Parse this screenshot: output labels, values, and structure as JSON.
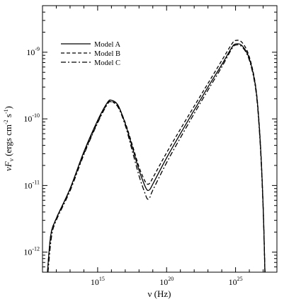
{
  "chart_data": {
    "type": "line",
    "title": "",
    "xlabel": "ν (Hz)",
    "ylabel": "νF",
    "ylabel_sub": "ν",
    "ylabel_units": " (ergs cm",
    "ylabel_units_exp1": "-2",
    "ylabel_units_mid": " s",
    "ylabel_units_exp2": "-1",
    "ylabel_units_end": ")",
    "xscale": "log",
    "yscale": "log",
    "xlim": [
      100000000000.0,
      1e+28
    ],
    "ylim": [
      5e-13,
      5e-09
    ],
    "grid": false,
    "legend_position": "top-left",
    "x_ticks": [
      {
        "value": 1000000000000000.0,
        "base": "10",
        "exp": "15"
      },
      {
        "value": 1e+20,
        "base": "10",
        "exp": "20"
      },
      {
        "value": 1e+25,
        "base": "10",
        "exp": "25"
      }
    ],
    "y_ticks": [
      {
        "value": 1e-12,
        "base": "10",
        "exp": "-12"
      },
      {
        "value": 1e-11,
        "base": "10",
        "exp": "-11"
      },
      {
        "value": 1e-10,
        "base": "10",
        "exp": "-10"
      },
      {
        "value": 1e-09,
        "base": "10",
        "exp": "-9"
      }
    ],
    "series": [
      {
        "name": "Model A",
        "line_style": "solid",
        "points": [
          [
            230000000000.0,
            5e-13
          ],
          [
            400000000000.0,
            1.8e-12
          ],
          [
            1000000000000.0,
            3.2e-12
          ],
          [
            10000000000000.0,
            9e-12
          ],
          [
            100000000000000.0,
            3.2e-11
          ],
          [
            1000000000000000.0,
            9.5e-11
          ],
          [
            5000000000000000.0,
            1.75e-10
          ],
          [
            1e+16,
            1.9e-10
          ],
          [
            3e+16,
            1.6e-10
          ],
          [
            1e+17,
            8.5e-11
          ],
          [
            3e+17,
            4e-11
          ],
          [
            1e+18,
            1.7e-11
          ],
          [
            2.5e+18,
            1.02e-11
          ],
          [
            4e+18,
            8.5e-12
          ],
          [
            6e+18,
            8.7e-12
          ],
          [
            1e+19,
            1.05e-11
          ],
          [
            1e+20,
            2.6e-11
          ],
          [
            1e+21,
            6e-11
          ],
          [
            1e+22,
            1.35e-10
          ],
          [
            1e+23,
            3e-10
          ],
          [
            1e+24,
            6.5e-10
          ],
          [
            5e+24,
            1.15e-09
          ],
          [
            1e+25,
            1.33e-09
          ],
          [
            3e+25,
            1.25e-09
          ],
          [
            1e+26,
            8e-10
          ],
          [
            3e+26,
            2.8e-10
          ],
          [
            6e+26,
            5e-11
          ],
          [
            1e+27,
            5e-12
          ],
          [
            1.35e+27,
            5e-13
          ]
        ]
      },
      {
        "name": "Model B",
        "line_style": "dashed",
        "points": [
          [
            230000000000.0,
            5e-13
          ],
          [
            400000000000.0,
            1.8e-12
          ],
          [
            1000000000000.0,
            3.2e-12
          ],
          [
            10000000000000.0,
            8.8e-12
          ],
          [
            100000000000000.0,
            3e-11
          ],
          [
            1000000000000000.0,
            9e-11
          ],
          [
            5000000000000000.0,
            1.68e-10
          ],
          [
            1e+16,
            1.82e-10
          ],
          [
            3e+16,
            1.55e-10
          ],
          [
            1e+17,
            8.8e-11
          ],
          [
            3e+17,
            4.3e-11
          ],
          [
            1e+18,
            1.9e-11
          ],
          [
            2.5e+18,
            1.2e-11
          ],
          [
            4e+18,
            1.05e-11
          ],
          [
            6e+18,
            1.08e-11
          ],
          [
            1e+19,
            1.3e-11
          ],
          [
            1e+20,
            3.1e-11
          ],
          [
            1e+21,
            7e-11
          ],
          [
            1e+22,
            1.55e-10
          ],
          [
            1e+23,
            3.4e-10
          ],
          [
            1e+24,
            7.5e-10
          ],
          [
            5e+24,
            1.3e-09
          ],
          [
            1e+25,
            1.5e-09
          ],
          [
            3e+25,
            1.4e-09
          ],
          [
            1e+26,
            8.5e-10
          ],
          [
            3e+26,
            2.9e-10
          ],
          [
            6e+26,
            5.2e-11
          ],
          [
            1e+27,
            5e-12
          ],
          [
            1.35e+27,
            5e-13
          ]
        ]
      },
      {
        "name": "Model C",
        "line_style": "dashdot",
        "points": [
          [
            250000000000.0,
            5e-13
          ],
          [
            450000000000.0,
            1.7e-12
          ],
          [
            1000000000000.0,
            3e-12
          ],
          [
            10000000000000.0,
            8.3e-12
          ],
          [
            100000000000000.0,
            2.9e-11
          ],
          [
            1000000000000000.0,
            8.7e-11
          ],
          [
            5000000000000000.0,
            1.65e-10
          ],
          [
            1e+16,
            1.8e-10
          ],
          [
            3e+16,
            1.5e-10
          ],
          [
            1e+17,
            8e-11
          ],
          [
            3e+17,
            3.5e-11
          ],
          [
            1e+18,
            1.4e-11
          ],
          [
            2.5e+18,
            8e-12
          ],
          [
            4e+18,
            6.3e-12
          ],
          [
            6e+18,
            6.6e-12
          ],
          [
            1e+19,
            8.5e-12
          ],
          [
            1e+20,
            2.2e-11
          ],
          [
            1e+21,
            5.2e-11
          ],
          [
            1e+22,
            1.2e-10
          ],
          [
            1e+23,
            2.7e-10
          ],
          [
            1e+24,
            6e-10
          ],
          [
            5e+24,
            1.1e-09
          ],
          [
            1e+25,
            1.28e-09
          ],
          [
            3e+25,
            1.2e-09
          ],
          [
            1e+26,
            7.6e-10
          ],
          [
            3e+26,
            2.6e-10
          ],
          [
            6e+26,
            4.5e-11
          ],
          [
            1e+27,
            4.5e-12
          ],
          [
            1.35e+27,
            5e-13
          ]
        ]
      }
    ]
  }
}
